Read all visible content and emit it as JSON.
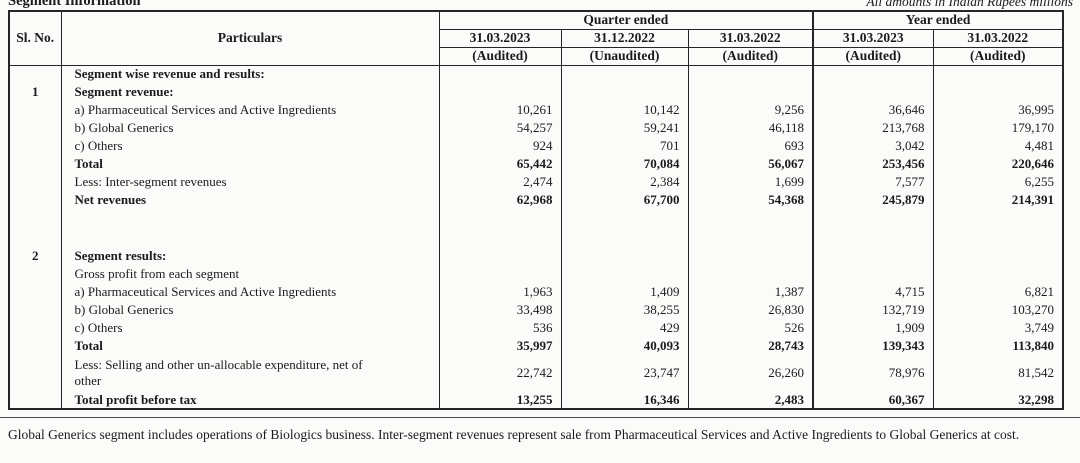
{
  "page": {
    "title": "Segment Information",
    "amounts_note": "All amounts in Indian Rupees millions"
  },
  "table": {
    "headers": {
      "sl_no": "Sl. No.",
      "particulars": "Particulars",
      "quarter_ended": "Quarter ended",
      "year_ended": "Year ended",
      "columns": [
        {
          "date": "31.03.2023",
          "audit": "(Audited)"
        },
        {
          "date": "31.12.2022",
          "audit": "(Unaudited)"
        },
        {
          "date": "31.03.2022",
          "audit": "(Audited)"
        },
        {
          "date": "31.03.2023",
          "audit": "(Audited)"
        },
        {
          "date": "31.03.2022",
          "audit": "(Audited)"
        }
      ]
    },
    "rows": [
      {
        "sl": "",
        "label": "Segment wise revenue and results:",
        "bold": true,
        "values": [
          "",
          "",
          "",
          "",
          ""
        ]
      },
      {
        "sl": "1",
        "label": "Segment revenue:",
        "bold": true,
        "values": [
          "",
          "",
          "",
          "",
          ""
        ]
      },
      {
        "sl": "",
        "label": "a) Pharmaceutical Services and Active Ingredients",
        "bold": false,
        "values": [
          "10,261",
          "10,142",
          "9,256",
          "36,646",
          "36,995"
        ]
      },
      {
        "sl": "",
        "label": "b) Global Generics",
        "bold": false,
        "values": [
          "54,257",
          "59,241",
          "46,118",
          "213,768",
          "179,170"
        ]
      },
      {
        "sl": "",
        "label": "c) Others",
        "bold": false,
        "values": [
          "924",
          "701",
          "693",
          "3,042",
          "4,481"
        ]
      },
      {
        "sl": "",
        "label": "Total",
        "bold": true,
        "values": [
          "65,442",
          "70,084",
          "56,067",
          "253,456",
          "220,646"
        ]
      },
      {
        "sl": "",
        "label": "Less: Inter-segment revenues",
        "bold": false,
        "values": [
          "2,474",
          "2,384",
          "1,699",
          "7,577",
          "6,255"
        ]
      },
      {
        "sl": "",
        "label": "Net revenues",
        "bold": true,
        "values": [
          "62,968",
          "67,700",
          "54,368",
          "245,879",
          "214,391"
        ]
      },
      {
        "type": "spacer"
      },
      {
        "sl": "2",
        "label": "Segment results:",
        "bold": true,
        "values": [
          "",
          "",
          "",
          "",
          ""
        ]
      },
      {
        "sl": "",
        "label": "Gross profit from each segment",
        "bold": false,
        "values": [
          "",
          "",
          "",
          "",
          ""
        ]
      },
      {
        "sl": "",
        "label": "a) Pharmaceutical Services and Active Ingredients",
        "bold": false,
        "values": [
          "1,963",
          "1,409",
          "1,387",
          "4,715",
          "6,821"
        ]
      },
      {
        "sl": "",
        "label": "b) Global Generics",
        "bold": false,
        "values": [
          "33,498",
          "38,255",
          "26,830",
          "132,719",
          "103,270"
        ]
      },
      {
        "sl": "",
        "label": "c) Others",
        "bold": false,
        "values": [
          "536",
          "429",
          "526",
          "1,909",
          "3,749"
        ]
      },
      {
        "sl": "",
        "label": "Total",
        "bold": true,
        "values": [
          "35,997",
          "40,093",
          "28,743",
          "139,343",
          "113,840"
        ]
      },
      {
        "sl": "",
        "label": "Less: Selling and other un-allocable expenditure, net of other",
        "bold": false,
        "wrap": true,
        "values": [
          "22,742",
          "23,747",
          "26,260",
          "78,976",
          "81,542"
        ]
      },
      {
        "sl": "",
        "label": "Total profit before tax",
        "bold": true,
        "values": [
          "13,255",
          "16,346",
          "2,483",
          "60,367",
          "32,298"
        ]
      }
    ]
  },
  "footer": {
    "note": "Global Generics segment includes operations of Biologics business. Inter-segment revenues represent sale from Pharmaceutical Services and Active Ingredients to Global Generics at cost."
  }
}
